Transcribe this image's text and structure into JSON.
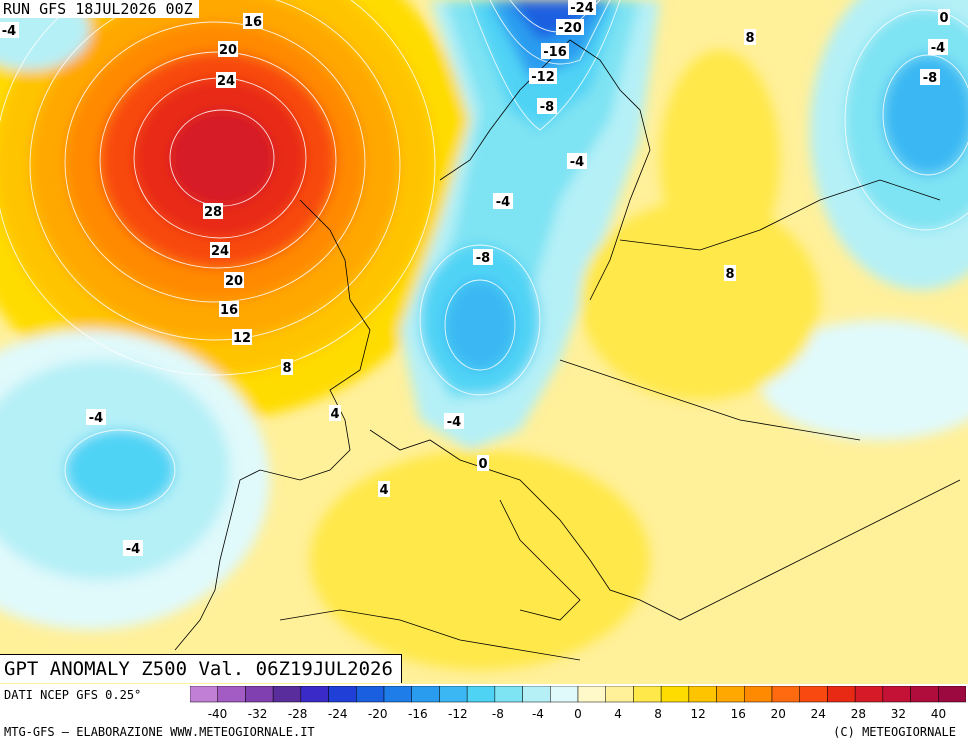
{
  "header": {
    "run_label": "RUN GFS 18JUL2026 00Z"
  },
  "map": {
    "title": "GPT ANOMALY Z500 Val. 06Z19JUL2026",
    "contour_labels": [
      "16",
      "20",
      "24",
      "28",
      "24",
      "20",
      "16",
      "12",
      "8",
      "4",
      "4",
      "0",
      "-4",
      "-4",
      "-4",
      "-4",
      "-8",
      "-4",
      "-8",
      "-12",
      "-16",
      "-20",
      "-24",
      "8",
      "8",
      "0",
      "-4",
      "-8",
      "-4"
    ]
  },
  "legend": {
    "source": "DATI NCEP GFS 0.25°",
    "credit": "MTG-GFS – ELABORAZIONE WWW.METEOGIORNALE.IT",
    "copyright": "(C) METEOGIORNALE",
    "tick_labels": [
      "-40",
      "-32",
      "-28",
      "-24",
      "-20",
      "-16",
      "-12",
      "-8",
      "-4",
      "0",
      "4",
      "8",
      "12",
      "16",
      "20",
      "24",
      "28",
      "32",
      "40"
    ],
    "colors": [
      "#c27fd6",
      "#a35cc4",
      "#8040b0",
      "#5a2d9c",
      "#3a2ac8",
      "#1f3fd6",
      "#1a5fe0",
      "#1e7de8",
      "#2a9cf0",
      "#3bb8f3",
      "#4fd3f5",
      "#7ee3f3",
      "#b5f0f7",
      "#e0f9fb",
      "#fff8c8",
      "#fff09a",
      "#ffe84a",
      "#ffdc00",
      "#ffc400",
      "#ffa800",
      "#ff8a00",
      "#ff6a10",
      "#f84a10",
      "#e82a14",
      "#d61a28",
      "#c41236",
      "#b00c3c",
      "#9c0840"
    ]
  }
}
